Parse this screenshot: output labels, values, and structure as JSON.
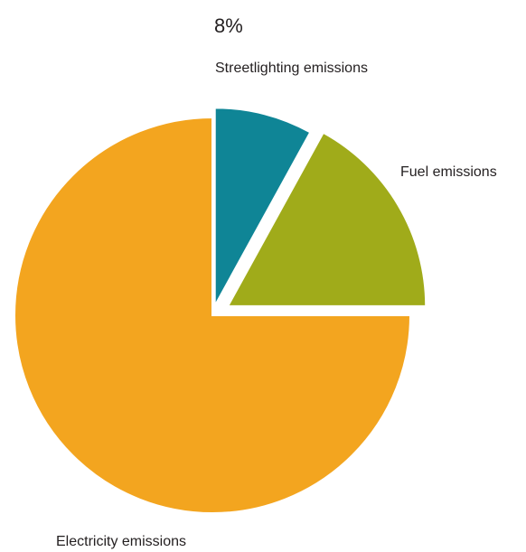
{
  "chart_data": {
    "type": "pie",
    "title": "",
    "slices": [
      {
        "label": "Streetlighting emissions",
        "value": 8,
        "color": "#0f8596",
        "data_label": "8%"
      },
      {
        "label": "Fuel emissions",
        "value": 17,
        "color": "#a0ab1a",
        "data_label": ""
      },
      {
        "label": "Electricity emissions",
        "value": 75,
        "color": "#f3a51f",
        "data_label": ""
      }
    ],
    "start_angle": "12 o'clock",
    "direction": "clockwise",
    "exploded": true,
    "legend": "none"
  }
}
